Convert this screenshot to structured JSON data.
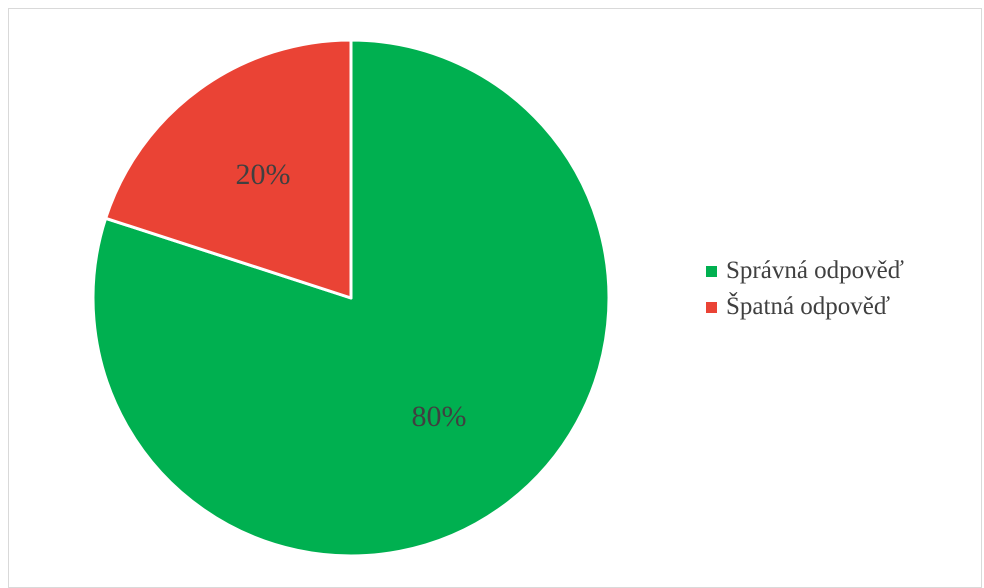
{
  "chart_data": {
    "type": "pie",
    "title": "",
    "categories": [
      "Správná odpověď",
      "Špatná odpověď"
    ],
    "values": [
      80,
      20
    ],
    "data_labels": [
      "80%",
      "20%"
    ],
    "colors": [
      "#00b050",
      "#ea4335"
    ],
    "legend_position": "right"
  }
}
